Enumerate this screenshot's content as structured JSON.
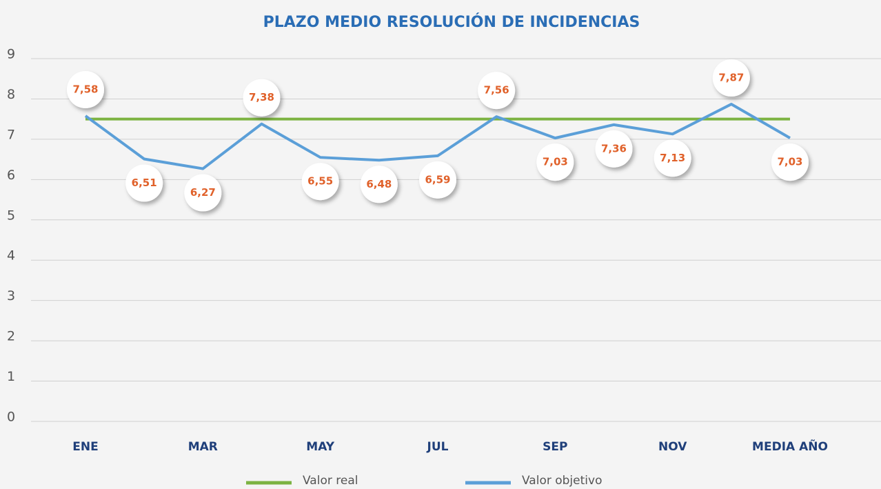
{
  "chart_data": {
    "type": "line",
    "title": "PLAZO MEDIO RESOLUCIÓN DE INCIDENCIAS",
    "categories": [
      "ENE",
      null,
      "MAR",
      null,
      "MAY",
      null,
      "JUL",
      null,
      "SEP",
      null,
      "NOV",
      null,
      "MEDIA AÑO"
    ],
    "series": [
      {
        "name": "Valor real",
        "color": "#7cb342",
        "values": [
          7.5,
          7.5,
          7.5,
          7.5,
          7.5,
          7.5,
          7.5,
          7.5,
          7.5,
          7.5,
          7.5,
          7.5,
          7.5
        ]
      },
      {
        "name": "Valor objetivo",
        "color": "#5b9fd8",
        "values": [
          7.58,
          6.51,
          6.27,
          7.38,
          6.55,
          6.48,
          6.59,
          7.56,
          7.03,
          7.36,
          7.13,
          7.87,
          7.03
        ],
        "value_labels": [
          "7,58",
          "6,51",
          "6,27",
          "7,38",
          "6,55",
          "6,48",
          "6,59",
          "7,56",
          "7,03",
          "7,36",
          "7,13",
          "7,87",
          "7,03"
        ]
      }
    ],
    "ylim": [
      0,
      9
    ],
    "yticks": [
      0,
      1,
      2,
      3,
      4,
      5,
      6,
      7,
      8,
      9
    ],
    "grid": true,
    "legend": "bottom"
  }
}
